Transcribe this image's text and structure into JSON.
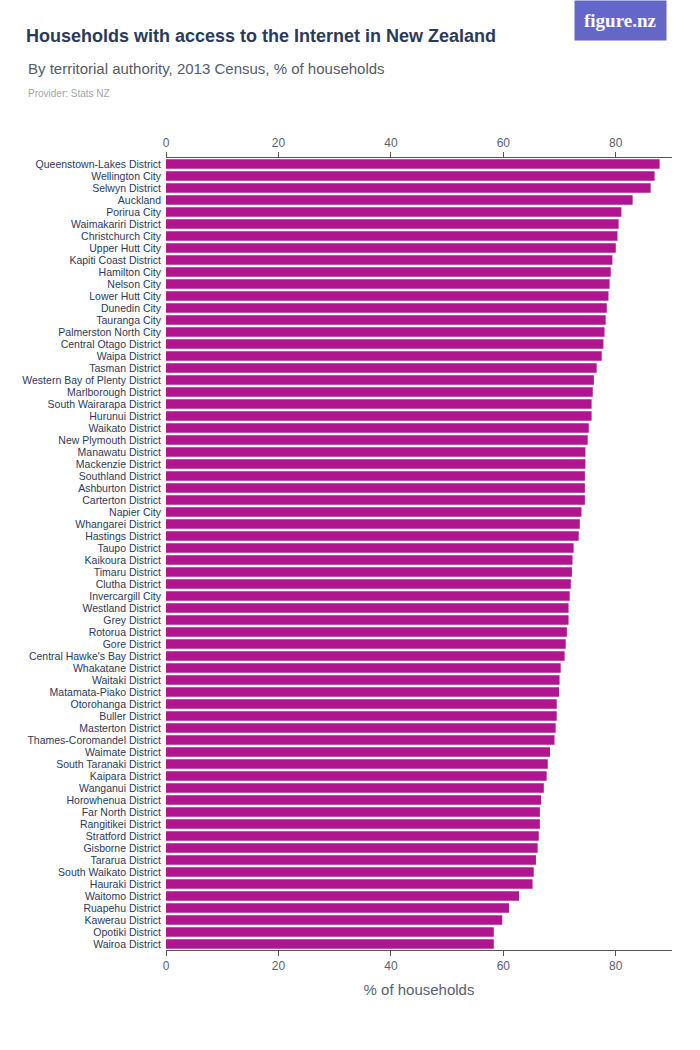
{
  "chart_data": {
    "type": "bar",
    "orientation": "horizontal",
    "title": "Households with access to the Internet in New Zealand",
    "subtitle": "By territorial authority, 2013 Census, % of households",
    "source": "Provider: Stats NZ",
    "logo": "figure.nz",
    "x_label": "% of households",
    "categories": [
      "Queenstown-Lakes District",
      "Wellington City",
      "Selwyn District",
      "Auckland",
      "Porirua City",
      "Waimakariri District",
      "Christchurch City",
      "Upper Hutt City",
      "Kapiti Coast District",
      "Hamilton City",
      "Nelson City",
      "Lower Hutt City",
      "Dunedin City",
      "Tauranga City",
      "Palmerston North City",
      "Central Otago District",
      "Waipa District",
      "Tasman District",
      "Western Bay of Plenty District",
      "Marlborough District",
      "South Wairarapa District",
      "Hurunui District",
      "Waikato District",
      "New Plymouth District",
      "Manawatu District",
      "Mackenzie District",
      "Southland District",
      "Ashburton District",
      "Carterton District",
      "Napier City",
      "Whangarei District",
      "Hastings District",
      "Taupo District",
      "Kaikoura District",
      "Timaru District",
      "Clutha District",
      "Invercargill City",
      "Westland District",
      "Grey District",
      "Rotorua District",
      "Gore District",
      "Central Hawke's Bay District",
      "Whakatane District",
      "Waitaki District",
      "Matamata-Piako District",
      "Otorohanga District",
      "Buller District",
      "Masterton District",
      "Thames-Coromandel District",
      "Waimate District",
      "South Taranaki District",
      "Kaipara District",
      "Wanganui District",
      "Horowhenua District",
      "Far North District",
      "Rangitikei District",
      "Stratford District",
      "Gisborne District",
      "Tararua District",
      "South Waikato District",
      "Hauraki District",
      "Waitomo District",
      "Ruapehu District",
      "Kawerau District",
      "Opotiki District",
      "Wairoa District"
    ],
    "values": [
      87.8,
      86.9,
      86.2,
      83.0,
      81.0,
      80.5,
      80.3,
      80.0,
      79.4,
      79.1,
      78.9,
      78.7,
      78.4,
      78.2,
      78.0,
      77.8,
      77.5,
      76.6,
      76.1,
      75.9,
      75.7,
      75.7,
      75.2,
      75.0,
      74.6,
      74.6,
      74.5,
      74.5,
      74.5,
      73.9,
      73.6,
      73.4,
      72.5,
      72.3,
      72.2,
      72.0,
      71.8,
      71.6,
      71.6,
      71.3,
      71.1,
      70.9,
      70.2,
      70.0,
      69.9,
      69.5,
      69.5,
      69.3,
      69.1,
      68.3,
      67.9,
      67.7,
      67.2,
      66.7,
      66.5,
      66.5,
      66.3,
      66.1,
      65.8,
      65.4,
      65.2,
      62.8,
      61.0,
      59.8,
      58.3,
      58.3
    ],
    "color": "#b0148f",
    "xlim": [
      0,
      90
    ],
    "xticks": [
      0,
      20,
      40,
      60,
      80
    ],
    "grid": false
  }
}
